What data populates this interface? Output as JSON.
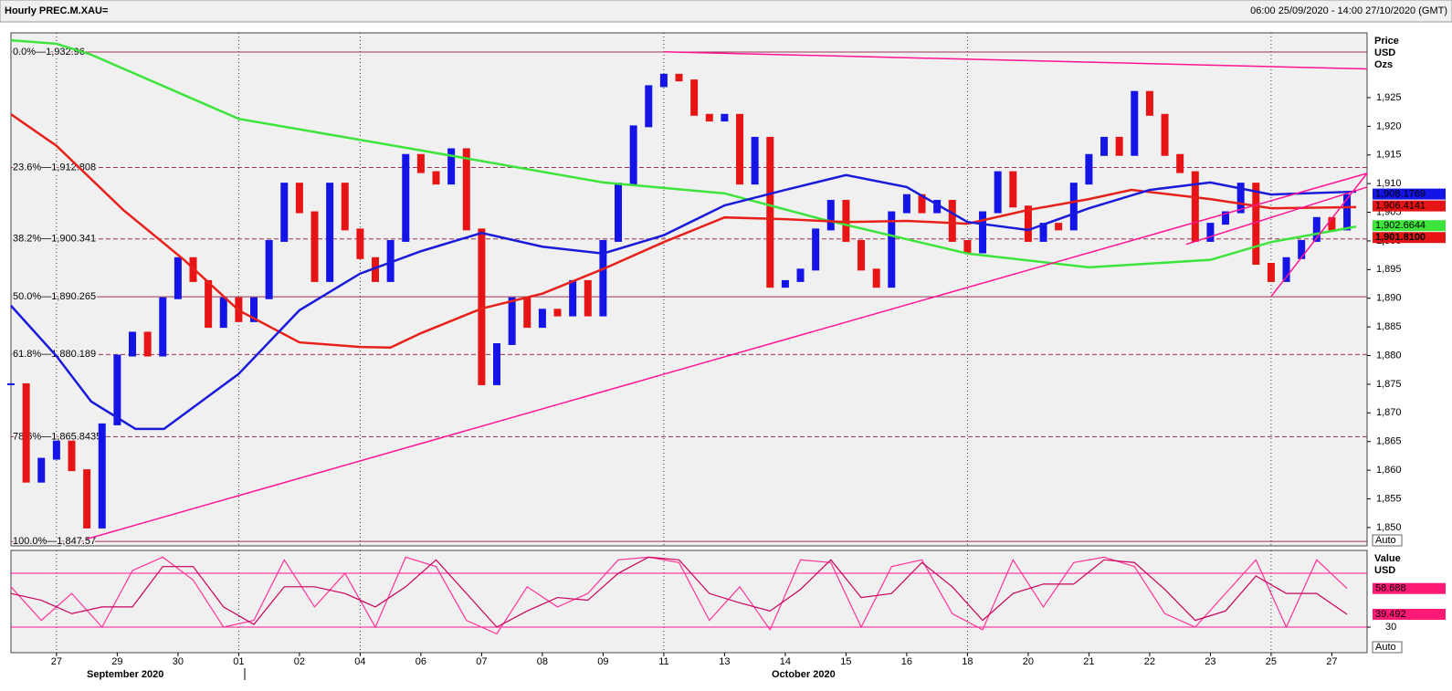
{
  "header": {
    "title": "Hourly PREC.M.XAU=",
    "range": "06:00 25/09/2020 - 14:00 27/10/2020 (GMT)"
  },
  "chart_data": [
    {
      "type": "candlestick",
      "axis_labels": [
        "Price",
        "USD",
        "Ozs"
      ],
      "scale_mode": "Auto",
      "xlim": [
        -0.75,
        21.58
      ],
      "xticks": [
        {
          "value": 0,
          "label": "27"
        },
        {
          "value": 1,
          "label": "29"
        },
        {
          "value": 2,
          "label": "30"
        },
        {
          "value": 3,
          "label": "01"
        },
        {
          "value": 4,
          "label": "02"
        },
        {
          "value": 5,
          "label": "04"
        },
        {
          "value": 6,
          "label": "06"
        },
        {
          "value": 7,
          "label": "07"
        },
        {
          "value": 8,
          "label": "08"
        },
        {
          "value": 9,
          "label": "09"
        },
        {
          "value": 10,
          "label": "11"
        },
        {
          "value": 11,
          "label": "13"
        },
        {
          "value": 12,
          "label": "14"
        },
        {
          "value": 13,
          "label": "15"
        },
        {
          "value": 14,
          "label": "16"
        },
        {
          "value": 15,
          "label": "18"
        },
        {
          "value": 16,
          "label": "20"
        },
        {
          "value": 17,
          "label": "21"
        },
        {
          "value": 18,
          "label": "22"
        },
        {
          "value": 19,
          "label": "23"
        },
        {
          "value": 20,
          "label": "25"
        },
        {
          "value": 21,
          "label": "27"
        }
      ],
      "vgrid": [
        0,
        3,
        5,
        10,
        15,
        20
      ],
      "month_labels": [
        "September 2020",
        "October 2020"
      ],
      "ylim": [
        1846.8,
        1936.3
      ],
      "yticks": [
        {
          "value": 1850,
          "label": "1,850"
        },
        {
          "value": 1855,
          "label": "1,855"
        },
        {
          "value": 1860,
          "label": "1,860"
        },
        {
          "value": 1865,
          "label": "1,865"
        },
        {
          "value": 1870,
          "label": "1,870"
        },
        {
          "value": 1875,
          "label": "1,875"
        },
        {
          "value": 1880,
          "label": "1,880"
        },
        {
          "value": 1885,
          "label": "1,885"
        },
        {
          "value": 1890,
          "label": "1,890"
        },
        {
          "value": 1895,
          "label": "1,895"
        },
        {
          "value": 1900,
          "label": "1,900"
        },
        {
          "value": 1905,
          "label": "1,905"
        },
        {
          "value": 1910,
          "label": "1,910"
        },
        {
          "value": 1915,
          "label": "1,915"
        },
        {
          "value": 1920,
          "label": "1,920"
        },
        {
          "value": 1925,
          "label": "1,925"
        }
      ],
      "up_color": "#1414e6",
      "down_color": "#e61414",
      "price": {
        "x": [
          -0.75,
          -0.5,
          -0.25,
          0,
          0.25,
          0.5,
          0.75,
          1,
          1.25,
          1.5,
          1.75,
          2,
          2.25,
          2.5,
          2.75,
          3,
          3.25,
          3.5,
          3.75,
          4,
          4.25,
          4.5,
          4.75,
          5,
          5.25,
          5.5,
          5.75,
          6,
          6.25,
          6.5,
          6.75,
          7,
          7.25,
          7.5,
          7.75,
          8,
          8.25,
          8.5,
          8.75,
          9,
          9.25,
          9.5,
          9.75,
          10,
          10.25,
          10.5,
          10.75,
          11,
          11.25,
          11.5,
          11.75,
          12,
          12.25,
          12.5,
          12.75,
          13,
          13.25,
          13.5,
          13.75,
          14,
          14.25,
          14.5,
          14.75,
          15,
          15.25,
          15.5,
          15.75,
          16,
          16.25,
          16.5,
          16.75,
          17,
          17.25,
          17.5,
          17.75,
          18,
          18.25,
          18.5,
          18.75,
          19,
          19.25,
          19.5,
          19.75,
          20,
          20.25,
          20.5,
          20.75,
          21,
          21.25
        ],
        "values": [
          1875,
          1858,
          1862,
          1865,
          1860,
          1850,
          1868,
          1880,
          1884,
          1880,
          1890,
          1897,
          1893,
          1885,
          1890,
          1886,
          1890,
          1900,
          1910,
          1905,
          1893,
          1910,
          1902,
          1897,
          1893,
          1900,
          1915,
          1912,
          1910,
          1916,
          1902,
          1875,
          1882,
          1890,
          1885,
          1888,
          1887,
          1893,
          1887,
          1900,
          1910,
          1920,
          1927,
          1929,
          1928,
          1922,
          1921,
          1922,
          1910,
          1918,
          1892,
          1893,
          1895,
          1902,
          1907,
          1900,
          1895,
          1892,
          1905,
          1908,
          1905,
          1907,
          1900,
          1898,
          1905,
          1912,
          1906,
          1900,
          1903,
          1902,
          1910,
          1915,
          1918,
          1915,
          1926,
          1922,
          1915,
          1912,
          1900,
          1903,
          1905,
          1910,
          1896,
          1893,
          1897,
          1900,
          1904,
          1902,
          1908
        ]
      },
      "series": [
        {
          "color": "#3ce43c",
          "x": [
            -0.75,
            0,
            0.57,
            3,
            6,
            9,
            11,
            12.6,
            15,
            17,
            19,
            20,
            21.4
          ],
          "values": [
            1935,
            1934.4,
            1932.5,
            1921.3,
            1915.8,
            1910.2,
            1908.3,
            1903.8,
            1897.8,
            1895.4,
            1896.7,
            1899.8,
            1902.5
          ]
        },
        {
          "color": "#e8201a",
          "x": [
            -0.75,
            0,
            1.1,
            2.1,
            3,
            4,
            5,
            5.5,
            6,
            7,
            8,
            9,
            10,
            11,
            12,
            13,
            14,
            15,
            16,
            17,
            17.7,
            19,
            20,
            21.4
          ],
          "values": [
            1922.1,
            1916.6,
            1905.4,
            1896.7,
            1887.9,
            1882.3,
            1881.5,
            1881.4,
            1883.9,
            1888.2,
            1890.8,
            1895.1,
            1899.8,
            1904.1,
            1903.8,
            1903.3,
            1903.5,
            1903,
            1905.4,
            1907.3,
            1908.9,
            1907.3,
            1905.7,
            1905.9
          ]
        },
        {
          "color": "#1a1adb",
          "x": [
            -0.75,
            0,
            0.57,
            1.3,
            1.77,
            3,
            4,
            5,
            6,
            7,
            8,
            9,
            10,
            11,
            12,
            13,
            14,
            15,
            16,
            17,
            18,
            19,
            20,
            21.4
          ],
          "values": [
            1888.7,
            1879.9,
            1872,
            1867.2,
            1867.2,
            1876.8,
            1887.9,
            1894.3,
            1898.2,
            1901.4,
            1899,
            1897.8,
            1901,
            1906.2,
            1908.9,
            1911.5,
            1909.4,
            1903.3,
            1901.9,
            1905.7,
            1908.9,
            1910.2,
            1908.1,
            1908.6
          ]
        }
      ],
      "fib_color": "#993355",
      "fib_levels": [
        {
          "value": 1932.96,
          "label": "0.0%—1,932.96"
        },
        {
          "value": 1912.808,
          "label": "23.6%—1,912.808"
        },
        {
          "value": 1900.341,
          "label": "38.2%—1,900.341"
        },
        {
          "value": 1890.265,
          "label": "50.0%—1,890.265"
        },
        {
          "value": 1880.189,
          "label": "61.8%—1,880.189"
        },
        {
          "value": 1865.8435,
          "label": "78.6%—1,865.8435"
        },
        {
          "value": 1847.57,
          "label": "100.0%—1,847.57"
        }
      ],
      "trendline_color": "#ff1493",
      "trendlines": [
        [
          [
            0.5,
            1848
          ],
          [
            21.58,
            1911.8
          ]
        ],
        [
          [
            10,
            1933
          ],
          [
            21.58,
            1930
          ]
        ],
        [
          [
            20,
            1890.3
          ],
          [
            21.58,
            1911.8
          ]
        ],
        [
          [
            18.6,
            1899.4
          ],
          [
            21.58,
            1909.4
          ]
        ]
      ],
      "last_values": [
        {
          "value": 1908.1769,
          "label": "1,908.1769",
          "color": "#1414e6"
        },
        {
          "value": 1906.4141,
          "label": "1,906.4141",
          "color": "#e61414"
        },
        {
          "value": 1902.6644,
          "label": "1,902.6644",
          "color": "#3ce43c"
        },
        {
          "value": 1901.81,
          "label": "1,901.8100",
          "color": "#e61414"
        }
      ]
    },
    {
      "type": "line",
      "axis_labels": [
        "Value",
        "USD"
      ],
      "scale_mode": "Auto",
      "xlim": [
        -0.75,
        21.58
      ],
      "ylim": [
        11,
        87
      ],
      "yticks": [
        30
      ],
      "levels": [
        70,
        30
      ],
      "level_color": "#ff1493",
      "series": [
        {
          "color": "#ff3399",
          "x": [
            -0.75,
            -0.25,
            0.25,
            0.75,
            1.25,
            1.75,
            2.25,
            2.75,
            3.25,
            3.75,
            4.25,
            4.75,
            5.25,
            5.75,
            6.25,
            6.75,
            7.25,
            7.75,
            8.25,
            8.75,
            9.25,
            9.75,
            10.25,
            10.75,
            11.25,
            11.75,
            12.25,
            12.75,
            13.25,
            13.75,
            14.25,
            14.75,
            15.25,
            15.75,
            16.25,
            16.75,
            17.25,
            17.75,
            18.25,
            18.75,
            19.25,
            19.75,
            20.25,
            20.75,
            21.25
          ],
          "values": [
            60,
            35,
            55,
            30,
            72,
            82,
            65,
            30,
            35,
            80,
            45,
            70,
            30,
            82,
            75,
            35,
            25,
            60,
            45,
            55,
            80,
            82,
            78,
            35,
            60,
            28,
            80,
            78,
            30,
            75,
            80,
            40,
            28,
            80,
            45,
            78,
            82,
            75,
            40,
            30,
            55,
            80,
            30,
            80,
            58.688
          ]
        },
        {
          "color": "#c8005a",
          "x": [
            -0.75,
            -0.25,
            0.25,
            0.75,
            1.25,
            1.75,
            2.25,
            2.75,
            3.25,
            3.75,
            4.25,
            4.75,
            5.25,
            5.75,
            6.25,
            6.75,
            7.25,
            7.75,
            8.25,
            8.75,
            9.25,
            9.75,
            10.25,
            10.75,
            11.25,
            11.75,
            12.25,
            12.75,
            13.25,
            13.75,
            14.25,
            14.75,
            15.25,
            15.75,
            16.25,
            16.75,
            17.25,
            17.75,
            18.25,
            18.75,
            19.25,
            19.75,
            20.25,
            20.75,
            21.25
          ],
          "values": [
            55,
            50,
            40,
            45,
            45,
            75,
            75,
            45,
            32,
            60,
            60,
            55,
            45,
            60,
            80,
            55,
            30,
            42,
            52,
            50,
            70,
            82,
            80,
            55,
            48,
            42,
            58,
            80,
            52,
            55,
            78,
            60,
            35,
            55,
            62,
            62,
            80,
            78,
            58,
            35,
            42,
            68,
            55,
            55,
            39.492
          ]
        }
      ],
      "last_values": [
        {
          "value": 58.688,
          "label": "58.688",
          "color": "#ff1a75"
        },
        {
          "value": 39.492,
          "label": "39.492",
          "color": "#ff1a75"
        }
      ]
    }
  ]
}
